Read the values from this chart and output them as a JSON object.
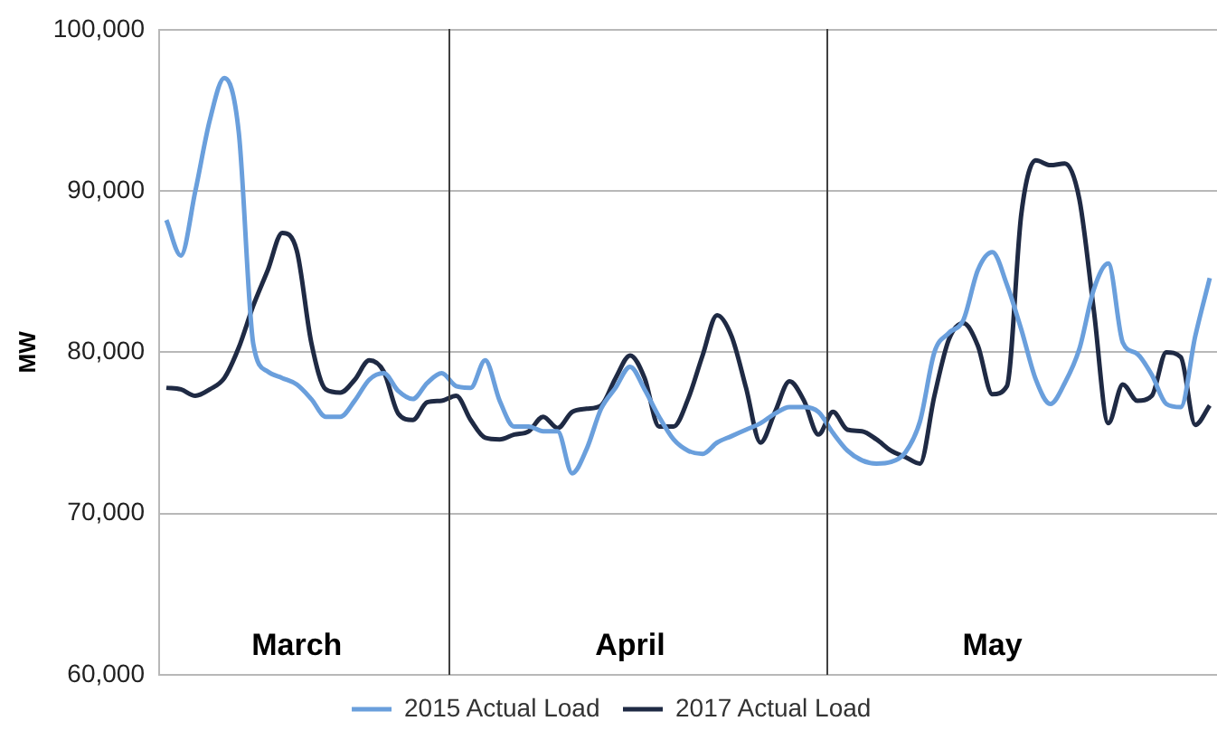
{
  "chart_data": {
    "type": "line",
    "ylabel": "MW",
    "ylim": [
      60000,
      100000
    ],
    "yticks": [
      {
        "value": 60000,
        "label": "60,000"
      },
      {
        "value": 70000,
        "label": "70,000"
      },
      {
        "value": 80000,
        "label": "80,000"
      },
      {
        "value": 90000,
        "label": "90,000"
      },
      {
        "value": 100000,
        "label": "100,000"
      }
    ],
    "grid": "y",
    "legend": "bottom",
    "marker": "none",
    "line_style": "solid",
    "categories": [
      null,
      null,
      null,
      null,
      null,
      null,
      null,
      null,
      null,
      "March",
      null,
      null,
      null,
      null,
      null,
      null,
      null,
      null,
      null,
      null,
      null,
      null,
      null,
      null,
      null,
      null,
      null,
      null,
      null,
      null,
      null,
      null,
      "April",
      null,
      null,
      null,
      null,
      null,
      null,
      null,
      null,
      null,
      null,
      null,
      null,
      null,
      null,
      null,
      null,
      null,
      null,
      null,
      null,
      null,
      null,
      null,
      null,
      "May",
      null,
      null,
      null,
      null,
      null,
      null,
      null,
      null,
      null,
      null,
      null,
      null,
      null,
      null,
      null
    ],
    "series": [
      {
        "name": "2015 Actual Load",
        "color": "#6a9fdc",
        "values": [
          88200,
          86000,
          90000,
          94400,
          97000,
          93600,
          80500,
          78800,
          78400,
          78000,
          77100,
          76000,
          76000,
          77000,
          78300,
          78700,
          77600,
          77100,
          78100,
          78700,
          77900,
          77800,
          79500,
          77000,
          75400,
          75400,
          75100,
          75100,
          72500,
          74000,
          76500,
          77800,
          79100,
          77700,
          76000,
          74600,
          73900,
          73700,
          74400,
          74800,
          75200,
          75600,
          76200,
          76600,
          76600,
          76300,
          75000,
          73900,
          73300,
          73100,
          73200,
          73800,
          75700,
          80000,
          81200,
          82000,
          85100,
          86200,
          84200,
          81400,
          78300,
          76800,
          78100,
          80200,
          83900,
          85500,
          80600,
          79900,
          78600,
          76800,
          76600,
          81000,
          84600
        ]
      },
      {
        "name": "2017 Actual Load",
        "color": "#1f2a44",
        "values": [
          77800,
          77700,
          77300,
          77700,
          78400,
          80300,
          82900,
          85100,
          87400,
          86300,
          80600,
          77700,
          77500,
          78300,
          79500,
          78800,
          76200,
          75800,
          76900,
          77000,
          77300,
          75800,
          74700,
          74600,
          74900,
          75100,
          76000,
          75300,
          76300,
          76500,
          76700,
          78400,
          79800,
          78400,
          75400,
          75400,
          77100,
          79800,
          82300,
          81000,
          77800,
          74400,
          76300,
          78200,
          77000,
          74900,
          76300,
          75200,
          75100,
          74600,
          73900,
          73500,
          73100,
          77300,
          80800,
          81800,
          80400,
          77400,
          77900,
          88600,
          91900,
          91600,
          91700,
          89500,
          82600,
          75600,
          78000,
          77000,
          77300,
          80000,
          79700,
          75500,
          76700
        ]
      }
    ]
  }
}
